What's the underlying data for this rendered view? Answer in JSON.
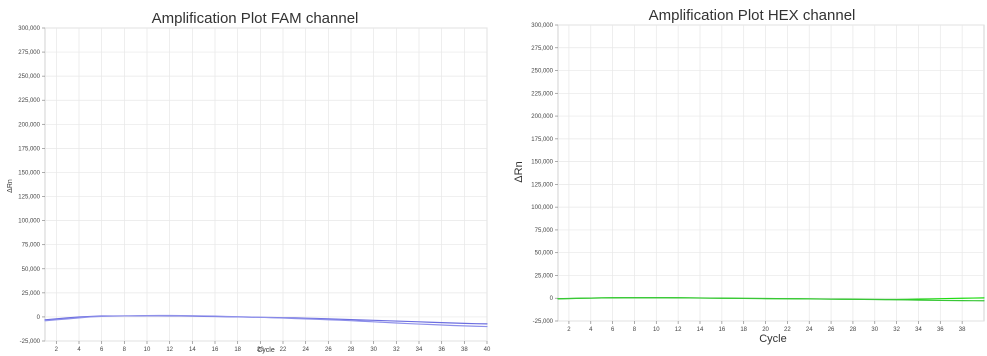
{
  "chart_data": [
    {
      "type": "line",
      "title": "Amplification Plot FAM channel",
      "xlabel": "Cycle",
      "ylabel": "ΔRn",
      "xlim": [
        1,
        40
      ],
      "ylim": [
        -25000,
        300000
      ],
      "xticks": [
        2,
        4,
        6,
        8,
        10,
        12,
        14,
        16,
        18,
        20,
        22,
        24,
        26,
        28,
        30,
        32,
        34,
        36,
        38,
        40
      ],
      "xtick_labels": [
        "2",
        "4",
        "6",
        "8",
        "10",
        "12",
        "14",
        "16",
        "18",
        "20",
        "22",
        "24",
        "26",
        "28",
        "30",
        "32",
        "34",
        "36",
        "38",
        "40"
      ],
      "yticks": [
        -25000,
        0,
        25000,
        50000,
        75000,
        100000,
        125000,
        150000,
        175000,
        200000,
        225000,
        250000,
        275000,
        300000
      ],
      "ytick_labels": [
        "-25,000",
        "0",
        "25,000",
        "50,000",
        "75,000",
        "100,000",
        "125,000",
        "150,000",
        "175,000",
        "200,000",
        "225,000",
        "250,000",
        "275,000",
        "300,000"
      ],
      "grid": true,
      "colors": [
        "#6c6ee0",
        "#8e90ea"
      ],
      "x": [
        1,
        2,
        3,
        4,
        5,
        6,
        7,
        8,
        9,
        10,
        11,
        12,
        13,
        14,
        15,
        16,
        17,
        18,
        19,
        20,
        21,
        22,
        23,
        24,
        25,
        26,
        27,
        28,
        29,
        30,
        31,
        32,
        33,
        34,
        35,
        36,
        37,
        38,
        39,
        40
      ],
      "series": [
        {
          "values": [
            -3000,
            -2000,
            -1000,
            0,
            500,
            1000,
            1000,
            1000,
            1000,
            1200,
            1200,
            1100,
            1000,
            800,
            600,
            400,
            200,
            0,
            -200,
            -400,
            -600,
            -800,
            -1000,
            -1300,
            -1600,
            -2000,
            -2400,
            -2800,
            -3200,
            -3500,
            -3900,
            -4300,
            -4700,
            -5100,
            -5500,
            -5900,
            -6300,
            -6700,
            -7000,
            -7200
          ]
        },
        {
          "values": [
            -4000,
            -3000,
            -2000,
            -1000,
            0,
            500,
            800,
            1000,
            1200,
            1400,
            1500,
            1500,
            1400,
            1200,
            1000,
            800,
            500,
            200,
            -100,
            -400,
            -800,
            -1200,
            -1600,
            -2000,
            -2400,
            -2900,
            -3400,
            -3900,
            -4500,
            -5100,
            -5700,
            -6300,
            -6900,
            -7400,
            -7900,
            -8400,
            -8900,
            -9300,
            -9700,
            -10000
          ]
        }
      ]
    },
    {
      "type": "line",
      "title": "Amplification Plot HEX channel",
      "xlabel": "Cycle",
      "ylabel": "ΔRn",
      "xlim": [
        1,
        40
      ],
      "ylim": [
        -25000,
        300000
      ],
      "xticks": [
        2,
        4,
        6,
        8,
        10,
        12,
        14,
        16,
        18,
        20,
        22,
        24,
        26,
        28,
        30,
        32,
        34,
        36,
        38
      ],
      "xtick_labels": [
        "2",
        "4",
        "6",
        "8",
        "10",
        "12",
        "14",
        "16",
        "18",
        "20",
        "22",
        "24",
        "26",
        "28",
        "30",
        "32",
        "34",
        "36",
        "38"
      ],
      "yticks": [
        -25000,
        0,
        25000,
        50000,
        75000,
        100000,
        125000,
        150000,
        175000,
        200000,
        225000,
        250000,
        275000,
        300000
      ],
      "ytick_labels": [
        "-25,000",
        "0",
        "25,000",
        "50,000",
        "75,000",
        "100,000",
        "125,000",
        "150,000",
        "175,000",
        "200,000",
        "225,000",
        "250,000",
        "275,000",
        "300,000"
      ],
      "grid": true,
      "colors": [
        "#1fdc12",
        "#39c637"
      ],
      "x": [
        1,
        2,
        3,
        4,
        5,
        6,
        7,
        8,
        9,
        10,
        11,
        12,
        13,
        14,
        15,
        16,
        17,
        18,
        19,
        20,
        21,
        22,
        23,
        24,
        25,
        26,
        27,
        28,
        29,
        30,
        31,
        32,
        33,
        34,
        35,
        36,
        37,
        38,
        39,
        40
      ],
      "series": [
        {
          "values": [
            -500,
            -200,
            0,
            200,
            400,
            500,
            600,
            600,
            600,
            600,
            600,
            500,
            400,
            300,
            200,
            100,
            0,
            -100,
            -200,
            -300,
            -400,
            -500,
            -600,
            -700,
            -800,
            -900,
            -1000,
            -1100,
            -1200,
            -1300,
            -1400,
            -1400,
            -1200,
            -1000,
            -800,
            -500,
            -200,
            0,
            200,
            400
          ]
        },
        {
          "values": [
            -700,
            -400,
            -100,
            100,
            300,
            400,
            500,
            500,
            500,
            500,
            500,
            400,
            300,
            200,
            100,
            0,
            -100,
            -200,
            -300,
            -400,
            -500,
            -600,
            -700,
            -800,
            -900,
            -1000,
            -1100,
            -1200,
            -1300,
            -1400,
            -1500,
            -1700,
            -1900,
            -2100,
            -2300,
            -2400,
            -2500,
            -2600,
            -2700,
            -2800
          ]
        }
      ]
    }
  ]
}
